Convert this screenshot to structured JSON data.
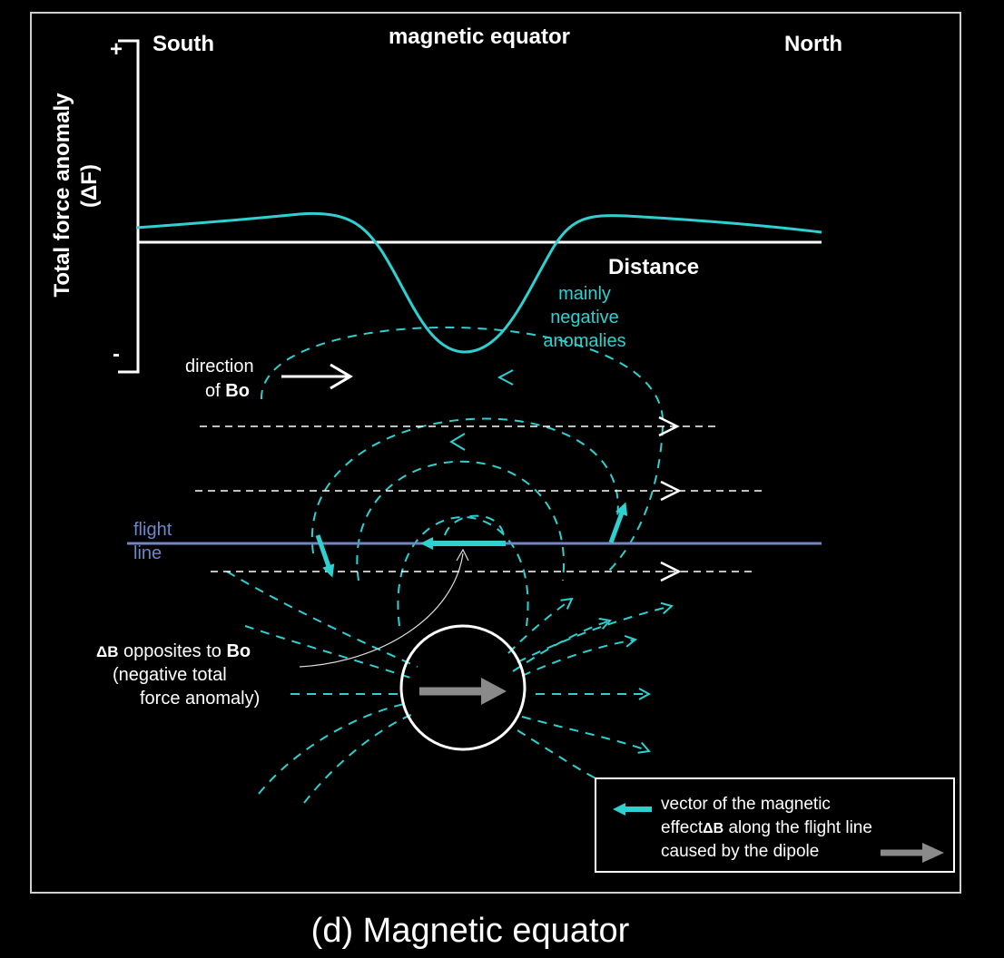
{
  "diagram": {
    "y_axis_label": "Total force anomaly",
    "y_axis_symbol": "(ΔF)",
    "plus_sign": "+",
    "minus_sign": "-",
    "south_label": "South",
    "equator_label": "magnetic equator",
    "north_label": "North",
    "distance_label": "Distance",
    "anomaly_note": [
      "mainly",
      "negative",
      "anomalies"
    ],
    "bo_direction": {
      "line1": "direction",
      "line2_prefix": "of ",
      "line2_bold": "Bo"
    },
    "flight_line": [
      "flight",
      "line"
    ],
    "delta_b_note": {
      "line1_symbol": "ΔB",
      "line1_text": " opposites to ",
      "line1_bold": "Bo",
      "line2": "(negative total",
      "line3": "force anomaly)"
    },
    "legend": {
      "line1": "vector of the magnetic",
      "line2_prefix": "effect",
      "line2_symbol": "ΔB",
      "line2_suffix": " along the flight line",
      "line3": "caused by the dipole"
    },
    "caption": "(d) Magnetic equator"
  },
  "colors": {
    "background": "#000000",
    "anomaly_curve": "#2fd0d0",
    "field_lines": "#2fd0d0",
    "flight_line": "#6f86c8",
    "dipole_arrow": "#8a8a8a",
    "text": "#ffffff"
  }
}
